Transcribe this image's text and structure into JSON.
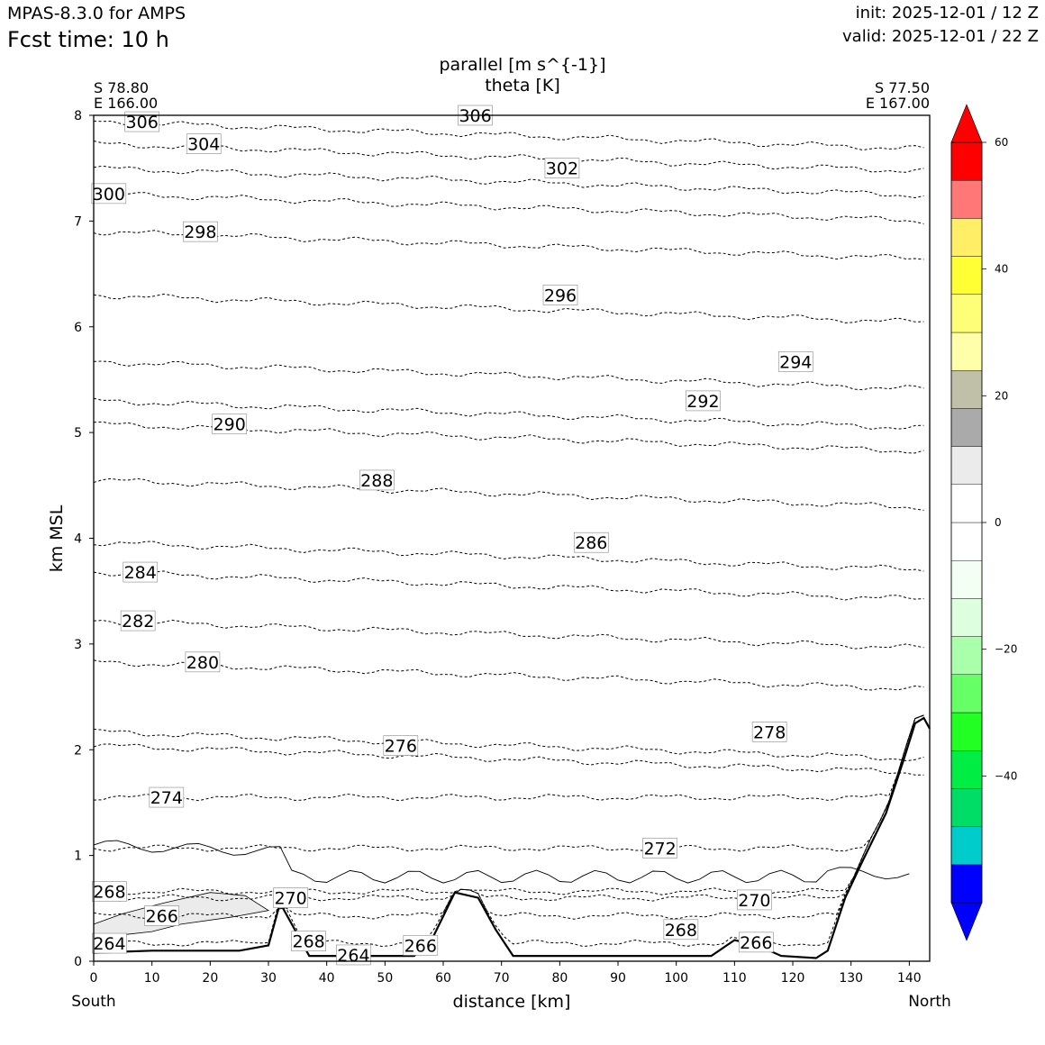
{
  "header": {
    "model": "MPAS-8.3.0 for AMPS",
    "fcst_time": "Fcst time:   10 h",
    "init": "init: 2025-12-01 / 12 Z",
    "valid": "valid: 2025-12-01 / 22 Z"
  },
  "chart_data": {
    "type": "contour",
    "title_line1": "parallel [m s^{-1}]",
    "title_line2": "theta [K]",
    "left_endpoint": {
      "lat": "S 78.80",
      "lon": "E 166.00",
      "label": "South"
    },
    "right_endpoint": {
      "lat": "S 77.50",
      "lon": "E 167.00",
      "label": "North"
    },
    "xlabel": "distance [km]",
    "ylabel": "km MSL",
    "xlim": [
      0,
      143.5
    ],
    "ylim": [
      0,
      8
    ],
    "xticks": [
      "0",
      "10",
      "20",
      "30",
      "40",
      "50",
      "60",
      "70",
      "80",
      "90",
      "100",
      "110",
      "120",
      "130",
      "140"
    ],
    "yticks": [
      "0",
      "1",
      "2",
      "3",
      "4",
      "5",
      "6",
      "7",
      "8"
    ],
    "terrain": [
      [
        0,
        0.08
      ],
      [
        10,
        0.1
      ],
      [
        25,
        0.1
      ],
      [
        30,
        0.15
      ],
      [
        32,
        0.55
      ],
      [
        34,
        0.35
      ],
      [
        37,
        0.05
      ],
      [
        55,
        0.05
      ],
      [
        58,
        0.2
      ],
      [
        62,
        0.65
      ],
      [
        66,
        0.6
      ],
      [
        69,
        0.3
      ],
      [
        72,
        0.05
      ],
      [
        106,
        0.05
      ],
      [
        110,
        0.2
      ],
      [
        114,
        0.15
      ],
      [
        118,
        0.05
      ],
      [
        124,
        0.03
      ],
      [
        126,
        0.1
      ],
      [
        129,
        0.6
      ],
      [
        132,
        0.95
      ],
      [
        136,
        1.4
      ],
      [
        139,
        1.9
      ],
      [
        141,
        2.25
      ],
      [
        142.5,
        2.3
      ],
      [
        143.5,
        2.2
      ]
    ],
    "theta_levels": [
      {
        "label": "264",
        "x": 2.7,
        "y": 0.17
      },
      {
        "label": "266",
        "x": 11.7,
        "y": 0.43
      },
      {
        "label": "268",
        "x": 2.7,
        "y": 0.66
      },
      {
        "label": "270",
        "x": 33.8,
        "y": 0.6
      },
      {
        "label": "268",
        "x": 36.9,
        "y": 0.19
      },
      {
        "label": "264",
        "x": 44.6,
        "y": 0.06
      },
      {
        "label": "266",
        "x": 56.1,
        "y": 0.15
      },
      {
        "label": "268",
        "x": 100.8,
        "y": 0.3
      },
      {
        "label": "270",
        "x": 113.4,
        "y": 0.58
      },
      {
        "label": "266",
        "x": 113.7,
        "y": 0.18
      },
      {
        "label": "272",
        "x": 97.2,
        "y": 1.07
      },
      {
        "label": "274",
        "x": 12.5,
        "y": 1.55
      },
      {
        "label": "276",
        "x": 52.7,
        "y": 2.04
      },
      {
        "label": "278",
        "x": 116.0,
        "y": 2.17
      },
      {
        "label": "280",
        "x": 18.7,
        "y": 2.83
      },
      {
        "label": "282",
        "x": 7.6,
        "y": 3.22
      },
      {
        "label": "284",
        "x": 8.0,
        "y": 3.68
      },
      {
        "label": "286",
        "x": 85.4,
        "y": 3.96
      },
      {
        "label": "288",
        "x": 48.6,
        "y": 4.55
      },
      {
        "label": "290",
        "x": 23.3,
        "y": 5.08
      },
      {
        "label": "292",
        "x": 104.6,
        "y": 5.3
      },
      {
        "label": "294",
        "x": 120.5,
        "y": 5.67
      },
      {
        "label": "296",
        "x": 80.1,
        "y": 6.3
      },
      {
        "label": "298",
        "x": 18.3,
        "y": 6.9
      },
      {
        "label": "300",
        "x": 2.6,
        "y": 7.26
      },
      {
        "label": "302",
        "x": 80.4,
        "y": 7.5
      },
      {
        "label": "304",
        "x": 18.9,
        "y": 7.73
      },
      {
        "label": "306",
        "x": 8.3,
        "y": 7.94
      },
      {
        "label": "306",
        "x": 65.5,
        "y": 8.0
      }
    ],
    "colorbar": {
      "min": -60,
      "max": 60,
      "tick_values": [
        -40,
        -20,
        0,
        20,
        40,
        60
      ],
      "tick_labels": [
        "−40",
        "−20",
        "0",
        "20",
        "40",
        "60"
      ],
      "boundaries": [
        -60,
        -54,
        -48,
        -42,
        -36,
        -30,
        -24,
        -18,
        -12,
        -6,
        0,
        6,
        12,
        18,
        24,
        30,
        36,
        42,
        48,
        54,
        60
      ],
      "colors": [
        "#0000ff",
        "#00cccc",
        "#00dd66",
        "#00ee44",
        "#22ff22",
        "#66ff66",
        "#aaffaa",
        "#ddffdd",
        "#f2fff2",
        "#ffffff",
        "#ffffff",
        "#ebebeb",
        "#aaaaaa",
        "#c0c0a8",
        "#ffffaa",
        "#ffff77",
        "#ffff33",
        "#ffee66",
        "#ff7777",
        "#ff0000"
      ],
      "under_color": "#0000ff",
      "over_color": "#ff0000"
    }
  }
}
